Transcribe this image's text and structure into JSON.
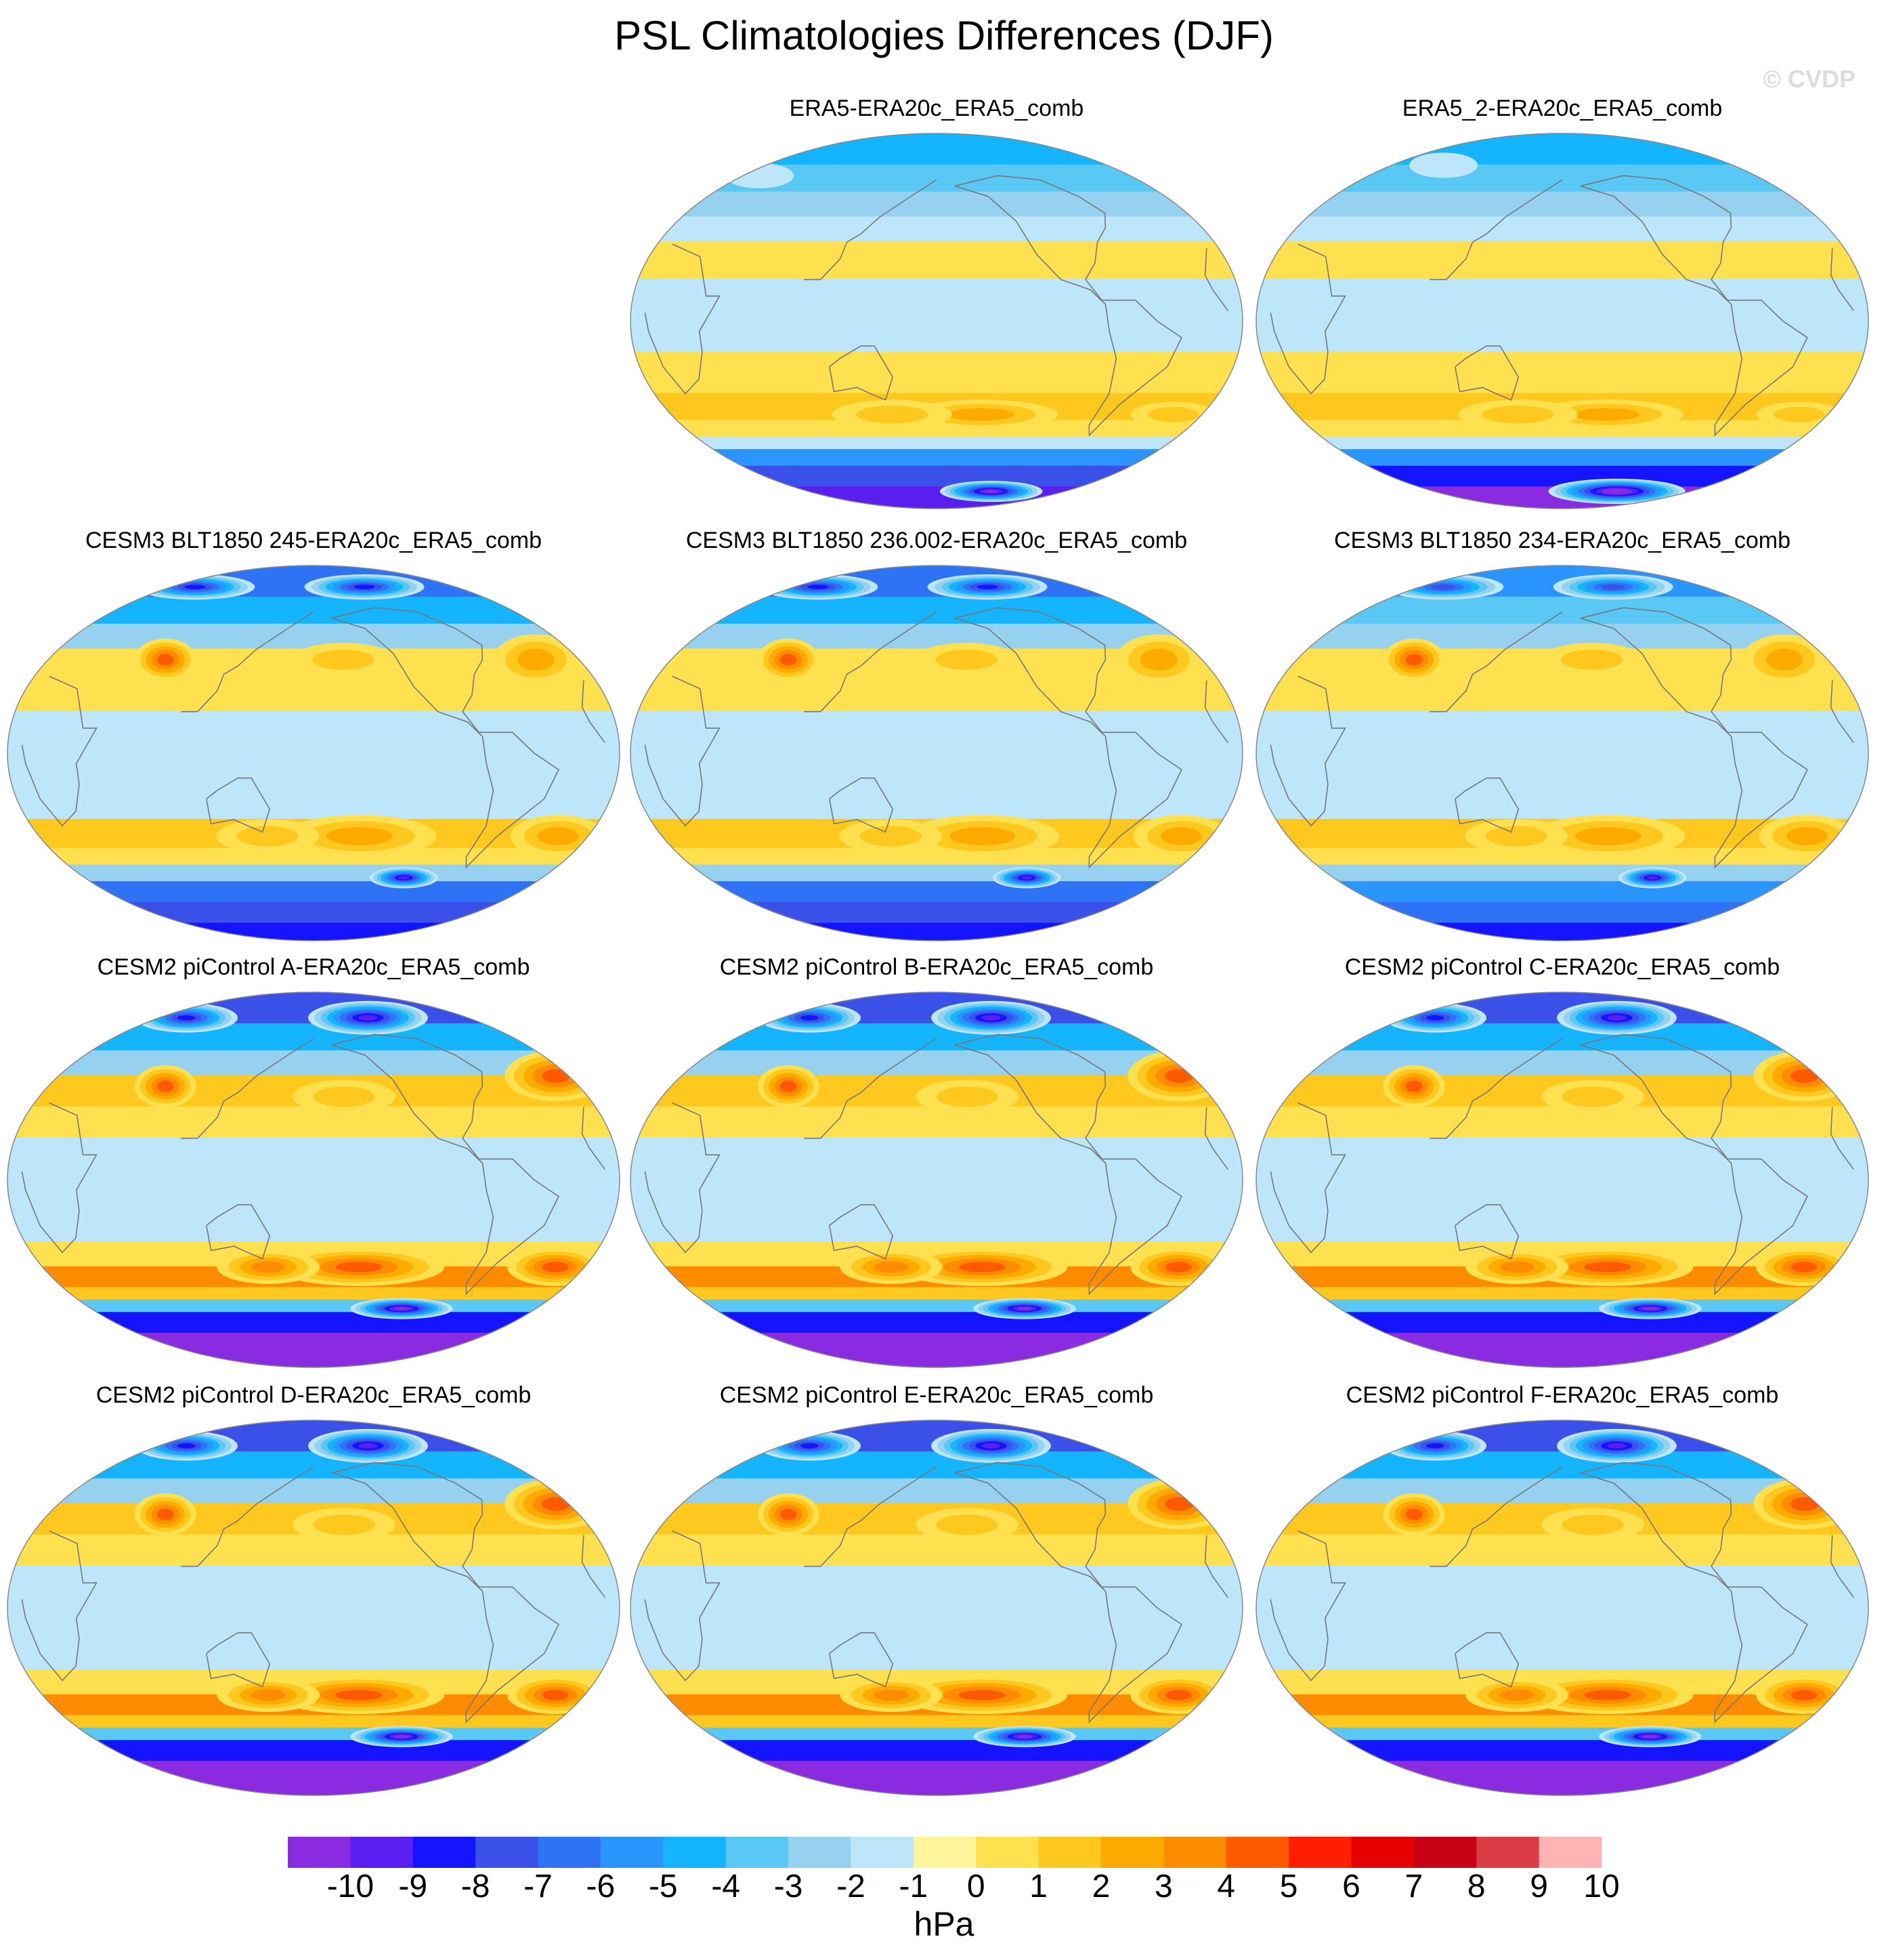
{
  "title": "PSL Climatologies Differences (DJF)",
  "watermark": "© CVDP",
  "panels": [
    {
      "title": "ERA5-ERA20c_ERA5_comb",
      "variant": "obs"
    },
    {
      "title": "ERA5_2-ERA20c_ERA5_comb",
      "variant": "obs2"
    },
    {
      "title": "CESM3 BLT1850 245-ERA20c_ERA5_comb",
      "variant": "cesm3"
    },
    {
      "title": "CESM3 BLT1850 236.002-ERA20c_ERA5_comb",
      "variant": "cesm3"
    },
    {
      "title": "CESM3 BLT1850 234-ERA20c_ERA5_comb",
      "variant": "cesm3b"
    },
    {
      "title": "CESM2 piControl A-ERA20c_ERA5_comb",
      "variant": "cesm2"
    },
    {
      "title": "CESM2 piControl B-ERA20c_ERA5_comb",
      "variant": "cesm2"
    },
    {
      "title": "CESM2 piControl C-ERA20c_ERA5_comb",
      "variant": "cesm2"
    },
    {
      "title": "CESM2 piControl D-ERA20c_ERA5_comb",
      "variant": "cesm2"
    },
    {
      "title": "CESM2 piControl E-ERA20c_ERA5_comb",
      "variant": "cesm2"
    },
    {
      "title": "CESM2 piControl F-ERA20c_ERA5_comb",
      "variant": "cesm2"
    }
  ],
  "colorbar": {
    "labels": [
      "-10",
      "-9",
      "-8",
      "-7",
      "-6",
      "-5",
      "-4",
      "-3",
      "-2",
      "-1",
      "0",
      "1",
      "2",
      "3",
      "4",
      "5",
      "6",
      "7",
      "8",
      "9",
      "10"
    ],
    "colors": [
      "#8a2be2",
      "#5a1ef0",
      "#1414ff",
      "#3a50e8",
      "#2e73f5",
      "#2a94ff",
      "#14b4ff",
      "#5ac8f5",
      "#96d2f0",
      "#bee6fa",
      "#fff59b",
      "#ffe150",
      "#ffc81e",
      "#ffaa00",
      "#ff8c00",
      "#ff5a00",
      "#ff1e00",
      "#e60000",
      "#c80014",
      "#dc3c46",
      "#ffb4b4"
    ],
    "units": "hPa"
  }
}
